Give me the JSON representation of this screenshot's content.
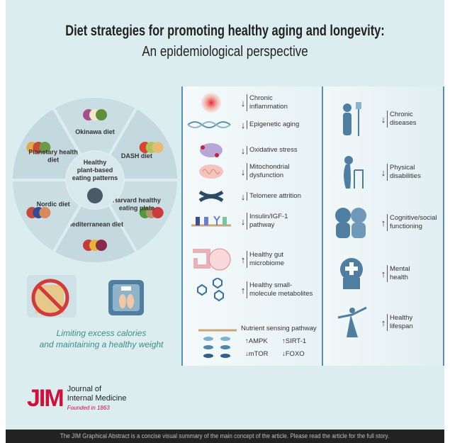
{
  "title": "Diet strategies for promoting healthy aging and longevity:",
  "subtitle": "An epidemiological perspective",
  "wheel": {
    "center": "Healthy\nplant-based\neating patterns",
    "segments": [
      "Okinawa diet",
      "DASH diet",
      "Harvard healthy eating plate",
      "Mediterranean diet",
      "Nordic diet",
      "Planetary health diet"
    ]
  },
  "calories": {
    "line1": "Limiting excess calories",
    "line2": "and maintaining a healthy weight"
  },
  "mechanisms": [
    {
      "label": "Chronic\ninflammation",
      "dir": "down",
      "icon": "inflammation-icon"
    },
    {
      "label": "Epigenetic aging",
      "dir": "down",
      "icon": "dna-icon"
    },
    {
      "label": "Oxidative stress",
      "dir": "down",
      "icon": "cell-icon"
    },
    {
      "label": "Mitochondrial\ndysfunction",
      "dir": "down",
      "icon": "mitochondria-icon"
    },
    {
      "label": "Telomere attrition",
      "dir": "down",
      "icon": "chromosome-icon"
    },
    {
      "label": "Insulin/IGF-1\npathway",
      "dir": "down",
      "icon": "receptor-icon"
    },
    {
      "label": "Healthy gut\nmicrobiome",
      "dir": "up",
      "icon": "gut-icon"
    },
    {
      "label": "Healthy small-\nmolecule metabolites",
      "dir": "up",
      "icon": "molecule-icon"
    }
  ],
  "nutrient": {
    "title": "Nutrient sensing pathway",
    "items": [
      {
        "label": "AMPK",
        "dir": "up"
      },
      {
        "label": "SIRT-1",
        "dir": "up"
      },
      {
        "label": "mTOR",
        "dir": "down"
      },
      {
        "label": "FOXO",
        "dir": "down"
      }
    ]
  },
  "outcomes": [
    {
      "label": "Chronic\ndiseases",
      "dir": "down",
      "icon": "iv-patient-icon"
    },
    {
      "label": "Physical\ndisabilities",
      "dir": "down",
      "icon": "walker-icon"
    },
    {
      "label": "Cognitive/social\nfunctioning",
      "dir": "up",
      "icon": "heads-icon"
    },
    {
      "label": "Mental\nhealth",
      "dir": "up",
      "icon": "head-cross-icon"
    },
    {
      "label": "Healthy\nlifespan",
      "dir": "up",
      "icon": "dancer-icon"
    }
  ],
  "logo": {
    "mark": "JIM",
    "name1": "Journal of",
    "name2": "Internal Medicine",
    "founded": "Founded in 1863"
  },
  "footer": "The JIM Graphical Abstract is a concise visual summary of the main concept of the article. Please read the article for the full story.",
  "colors": {
    "background": "#dcedf0",
    "accent": "#3c8e85",
    "brand": "#d0103a",
    "panel_border": "#5a8fb5"
  }
}
